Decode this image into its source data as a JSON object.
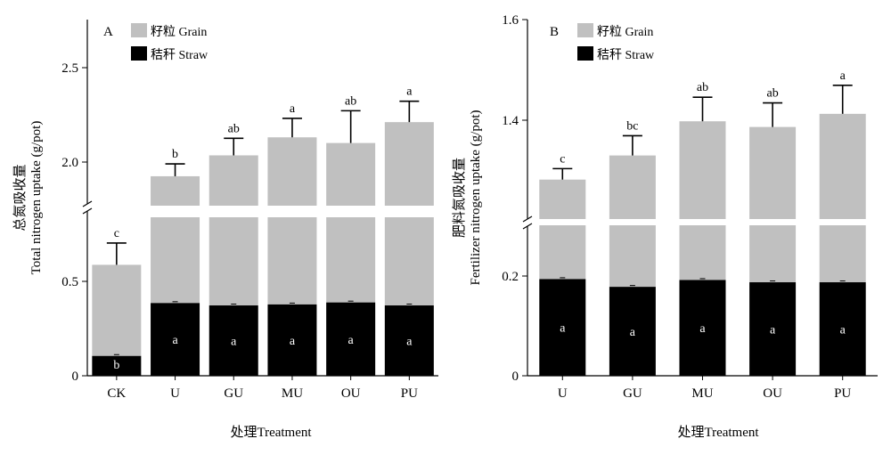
{
  "chart_data": [
    {
      "type": "bar",
      "stacked": true,
      "axis_break": true,
      "panel_label": "A",
      "ylabel_cn": "总氮吸收量",
      "ylabel_en": "Total nitrogen uptake (g/pot)",
      "xlabel": "处理Treatment",
      "categories": [
        "CK",
        "U",
        "GU",
        "MU",
        "OU",
        "PU"
      ],
      "ylim_lower": [
        0,
        0.8
      ],
      "ylim_upper": [
        1.78,
        2.76
      ],
      "yticks_lower": [
        "0",
        "0.5"
      ],
      "yticks_upper": [
        "2.0",
        "2.5"
      ],
      "legend": [
        "籽粒 Grain",
        "秸秆 Straw"
      ],
      "legend_position": "top-left",
      "series": [
        {
          "name": "秸秆 Straw",
          "color": "#000000",
          "values": [
            0.1,
            0.367,
            0.355,
            0.36,
            0.37,
            0.355
          ],
          "letters": [
            "b",
            "a",
            "a",
            "a",
            "a",
            "a"
          ]
        },
        {
          "name": "Total (籽粒 Grain + 秸秆 Straw)",
          "color": "#c0c0c0",
          "values": [
            0.56,
            1.935,
            2.045,
            2.14,
            2.11,
            2.22
          ],
          "error": [
            0.11,
            0.065,
            0.09,
            0.1,
            0.17,
            0.11
          ],
          "letters": [
            "c",
            "b",
            "ab",
            "a",
            "ab",
            "a"
          ]
        }
      ]
    },
    {
      "type": "bar",
      "stacked": true,
      "axis_break": true,
      "panel_label": "B",
      "ylabel_cn": "肥料氮吸收量",
      "ylabel_en": "Fertilizer nitrogen uptake (g/pot)",
      "xlabel": "处理Treatment",
      "categories": [
        "U",
        "GU",
        "MU",
        "OU",
        "PU"
      ],
      "ylim_lower": [
        0,
        0.33
      ],
      "ylim_upper": [
        1.145,
        1.6
      ],
      "yticks_lower": [
        "0",
        "0.2"
      ],
      "yticks_upper": [
        "1.4",
        "1.6"
      ],
      "legend": [
        "籽粒 Grain",
        "秸秆 Straw"
      ],
      "legend_position": "top-left",
      "series": [
        {
          "name": "秸秆 Straw",
          "color": "#000000",
          "values": [
            0.212,
            0.195,
            0.21,
            0.205,
            0.205
          ],
          "letters": [
            "a",
            "a",
            "a",
            "a",
            "a"
          ]
        },
        {
          "name": "Total (籽粒 Grain + 秸秆 Straw)",
          "color": "#c0c0c0",
          "values": [
            1.235,
            1.29,
            1.368,
            1.355,
            1.385
          ],
          "error": [
            0.025,
            0.045,
            0.055,
            0.055,
            0.065
          ],
          "letters": [
            "c",
            "bc",
            "ab",
            "ab",
            "a"
          ]
        }
      ]
    }
  ]
}
